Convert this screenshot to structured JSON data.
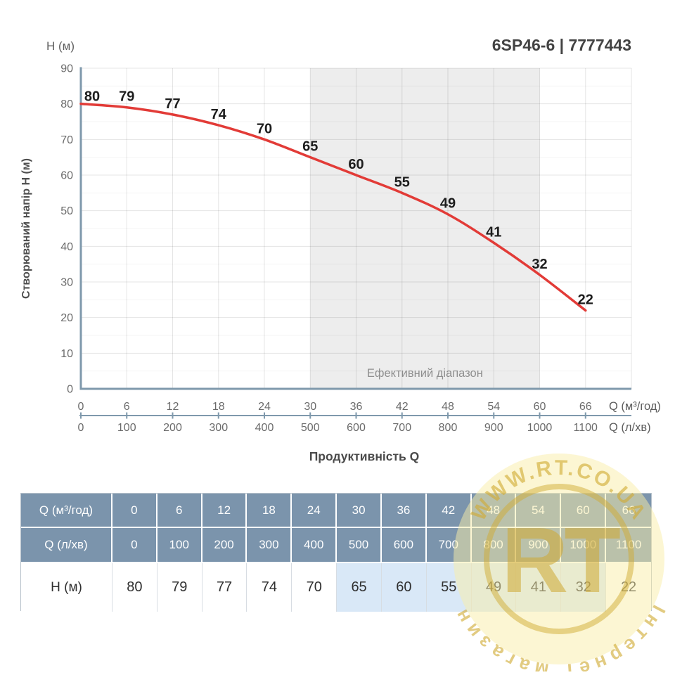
{
  "header": {
    "y_unit": "H (м)",
    "title": "6SP46-6 | 7777443"
  },
  "chart_data": {
    "type": "line",
    "x": [
      0,
      6,
      12,
      18,
      24,
      30,
      36,
      42,
      48,
      54,
      60,
      66
    ],
    "x2": [
      0,
      100,
      200,
      300,
      400,
      500,
      600,
      700,
      800,
      900,
      1000,
      1100
    ],
    "series": [
      {
        "name": "H",
        "values": [
          80,
          79,
          77,
          74,
          70,
          65,
          60,
          55,
          49,
          41,
          32,
          22
        ]
      }
    ],
    "y_ticks": [
      0,
      10,
      20,
      30,
      40,
      50,
      60,
      70,
      80,
      90
    ],
    "ylim": [
      0,
      90
    ],
    "xlim_grid": [
      0,
      72
    ],
    "xlabel": "Продуктивність Q",
    "ylabel": "Створюваний напір H (м)",
    "x_unit_primary": "Q (м³/год)",
    "x_unit_secondary": "Q (л/хв)",
    "effective_range": {
      "from": 30,
      "to": 60,
      "label": "Ефективний діапазон"
    },
    "grid": true,
    "legend": "none",
    "curve_color": "#e23b37",
    "axis_color": "#7f99ac",
    "shading_color": "#ededed"
  },
  "table": {
    "rows": [
      {
        "header": true,
        "label": "Q (м³/год)",
        "values": [
          0,
          6,
          12,
          18,
          24,
          30,
          36,
          42,
          48,
          54,
          60,
          66
        ]
      },
      {
        "header": true,
        "label": "Q (л/хв)",
        "values": [
          0,
          100,
          200,
          300,
          400,
          500,
          600,
          700,
          800,
          900,
          1000,
          1100
        ]
      },
      {
        "header": false,
        "label": "H (м)",
        "values": [
          80,
          79,
          77,
          74,
          70,
          65,
          60,
          55,
          49,
          41,
          32,
          22
        ]
      }
    ],
    "highlight_columns": [
      5,
      6,
      7,
      8,
      9,
      10
    ],
    "highlight_color": "#d9e8f7",
    "header_color": "#7b94ac"
  },
  "watermark": {
    "arc_top": "WWW.RT.CO.UA",
    "arc_bottom": "Інтернет магазин",
    "monogram": "RT",
    "color": "#d4af37"
  }
}
